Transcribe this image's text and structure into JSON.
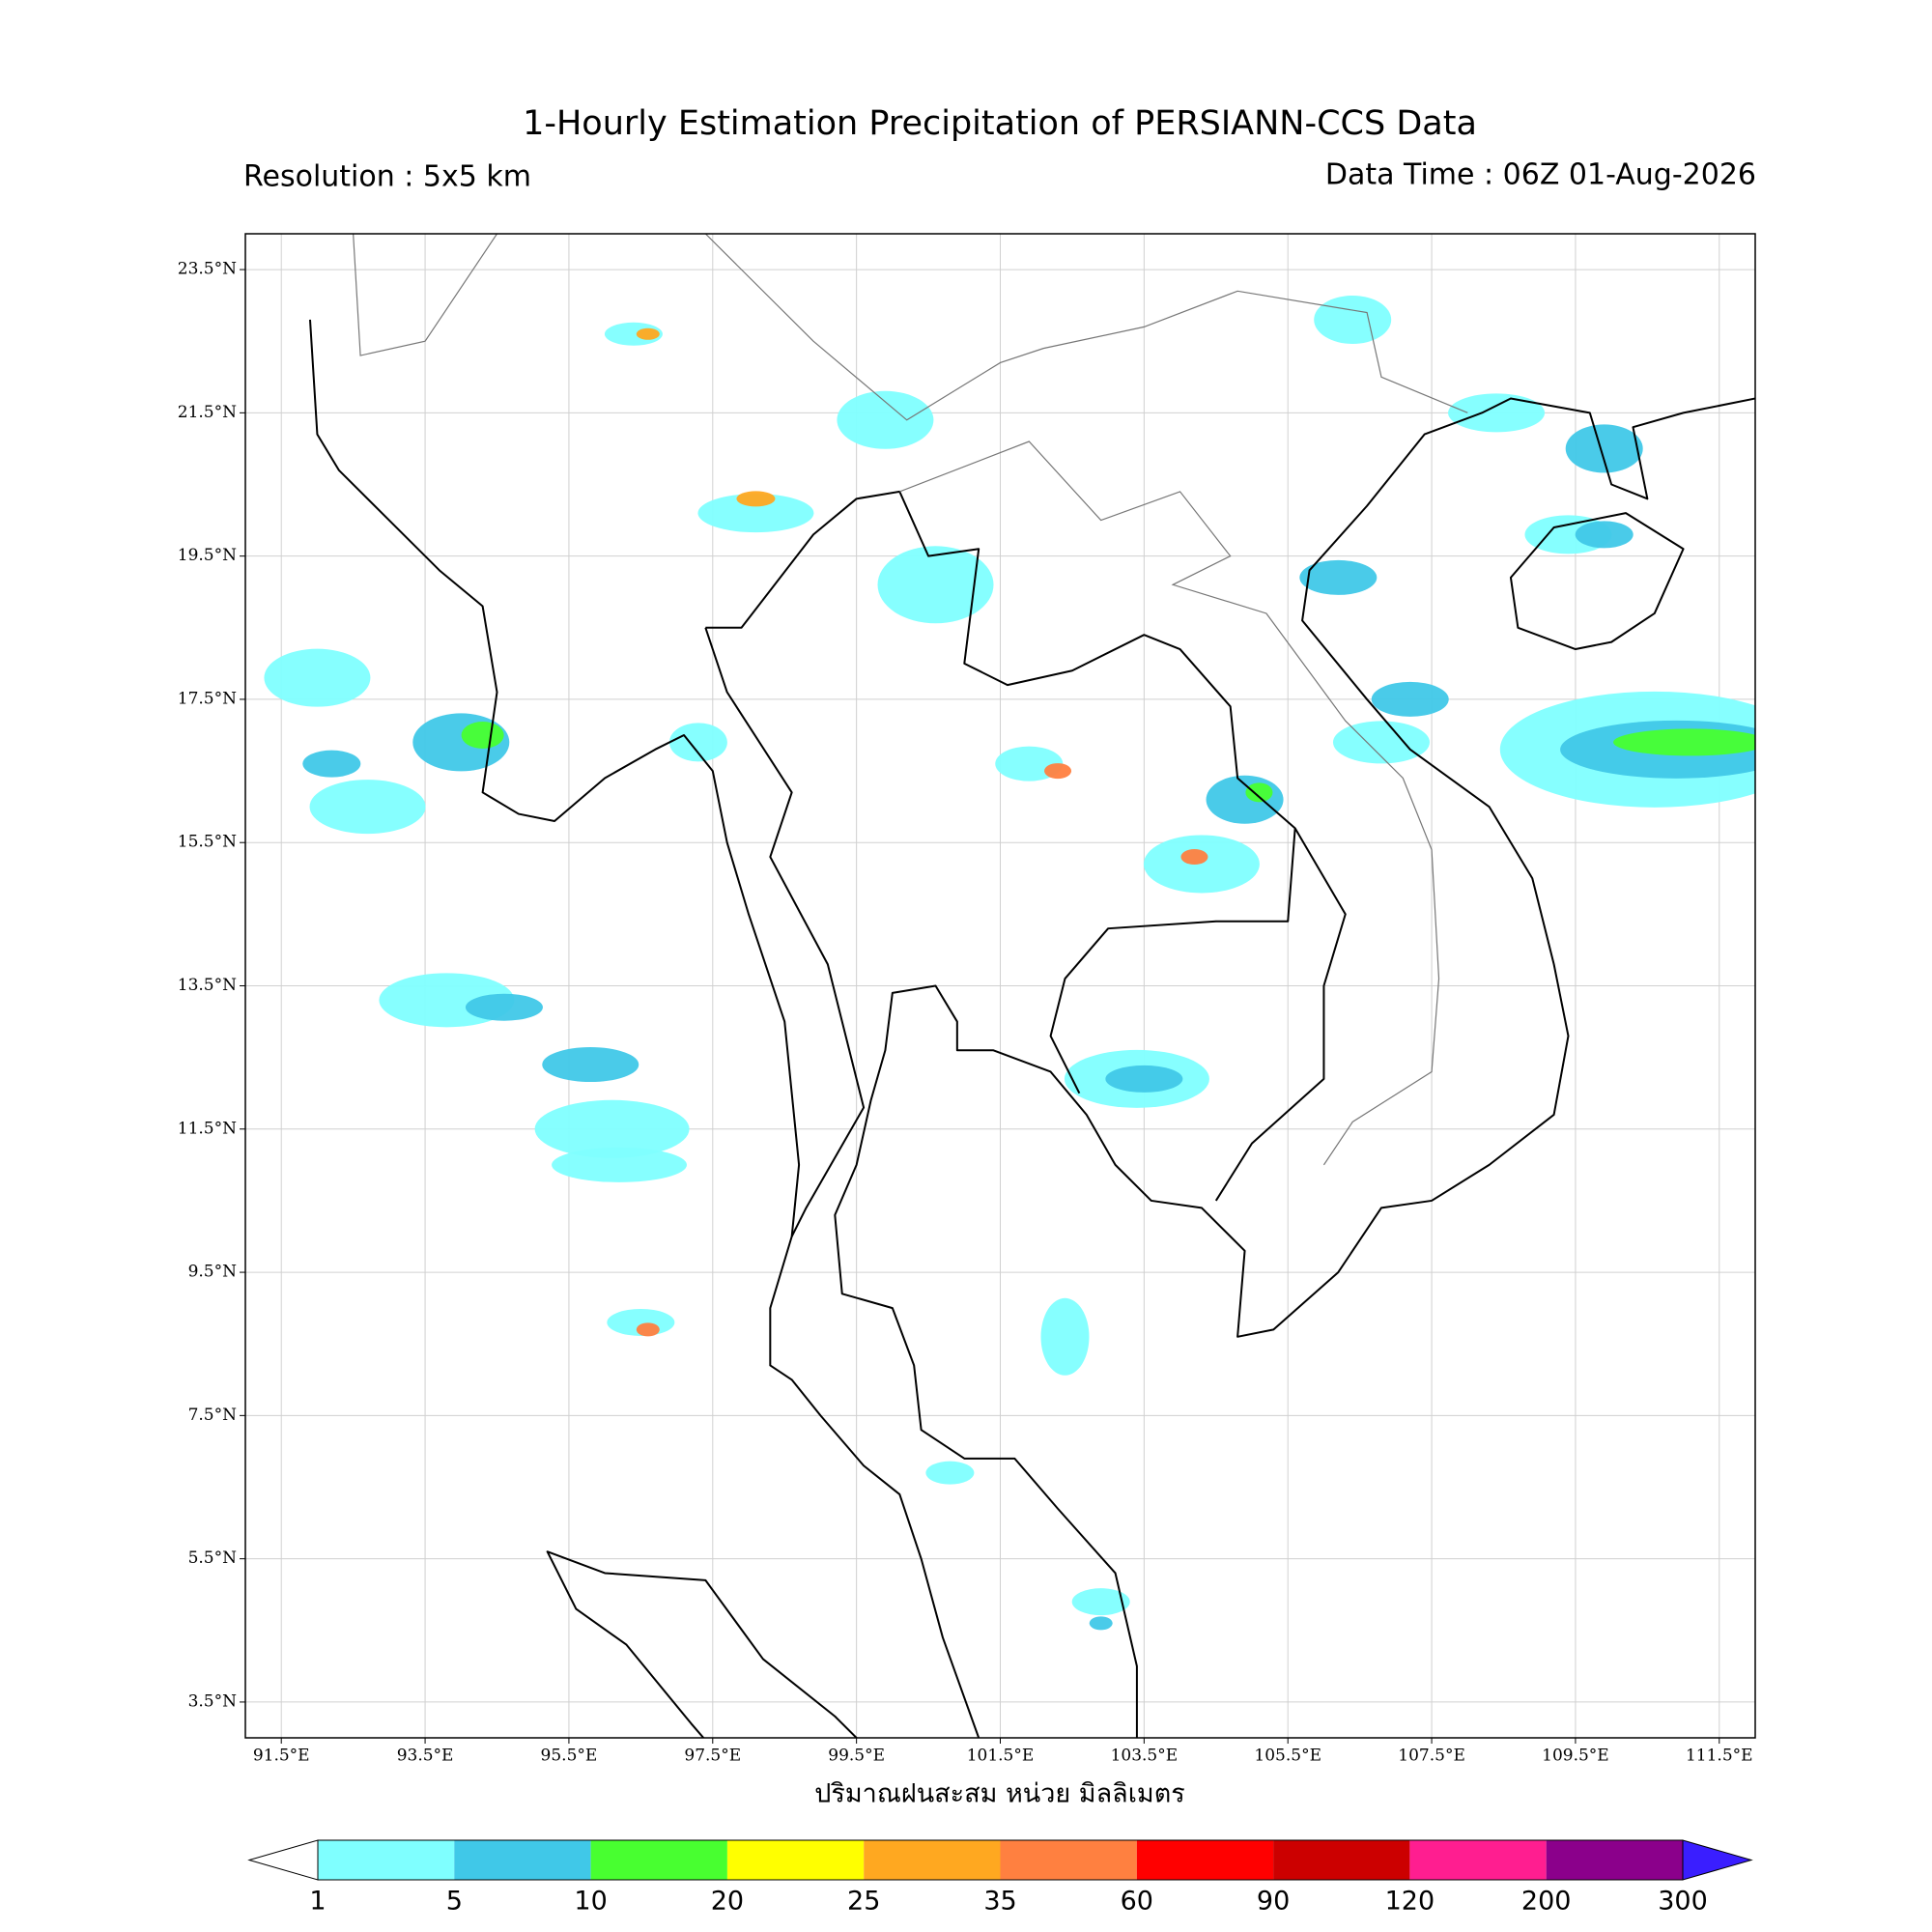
{
  "title": "1-Hourly Estimation Precipitation of PERSIANN-CCS Data",
  "resolution": "Resolution : 5x5 km",
  "data_time": "Data Time : 06Z 01-Aug-2026",
  "map": {
    "xlim": [
      91,
      112
    ],
    "ylim": [
      3,
      24
    ],
    "xticks": [
      {
        "value": 91.5,
        "label": "91.5°E"
      },
      {
        "value": 93.5,
        "label": "93.5°E"
      },
      {
        "value": 95.5,
        "label": "95.5°E"
      },
      {
        "value": 97.5,
        "label": "97.5°E"
      },
      {
        "value": 99.5,
        "label": "99.5°E"
      },
      {
        "value": 101.5,
        "label": "101.5°E"
      },
      {
        "value": 103.5,
        "label": "103.5°E"
      },
      {
        "value": 105.5,
        "label": "105.5°E"
      },
      {
        "value": 107.5,
        "label": "107.5°E"
      },
      {
        "value": 109.5,
        "label": "109.5°E"
      },
      {
        "value": 111.5,
        "label": "111.5°E"
      }
    ],
    "yticks": [
      {
        "value": 3.5,
        "label": "3.5°N"
      },
      {
        "value": 5.5,
        "label": "5.5°N"
      },
      {
        "value": 7.5,
        "label": "7.5°N"
      },
      {
        "value": 9.5,
        "label": "9.5°N"
      },
      {
        "value": 11.5,
        "label": "11.5°N"
      },
      {
        "value": 13.5,
        "label": "13.5°N"
      },
      {
        "value": 15.5,
        "label": "15.5°N"
      },
      {
        "value": 17.5,
        "label": "17.5°N"
      },
      {
        "value": 19.5,
        "label": "19.5°N"
      },
      {
        "value": 21.5,
        "label": "21.5°N"
      },
      {
        "value": 23.5,
        "label": "23.5°N"
      }
    ],
    "grid": true
  },
  "xlabel": "ปริมาณฝนสะสม หน่วย มิลลิเมตร",
  "colorbar": {
    "levels": [
      1,
      5,
      10,
      20,
      25,
      35,
      60,
      90,
      120,
      200,
      300
    ],
    "colors": [
      "#7fffff",
      "#40c8e8",
      "#48ff30",
      "#ffff00",
      "#ffa820",
      "#ff8040",
      "#ff0000",
      "#cc0000",
      "#ff1e90",
      "#8b008b"
    ],
    "under_color": "#ffffff",
    "over_color": "#3a1eff"
  }
}
